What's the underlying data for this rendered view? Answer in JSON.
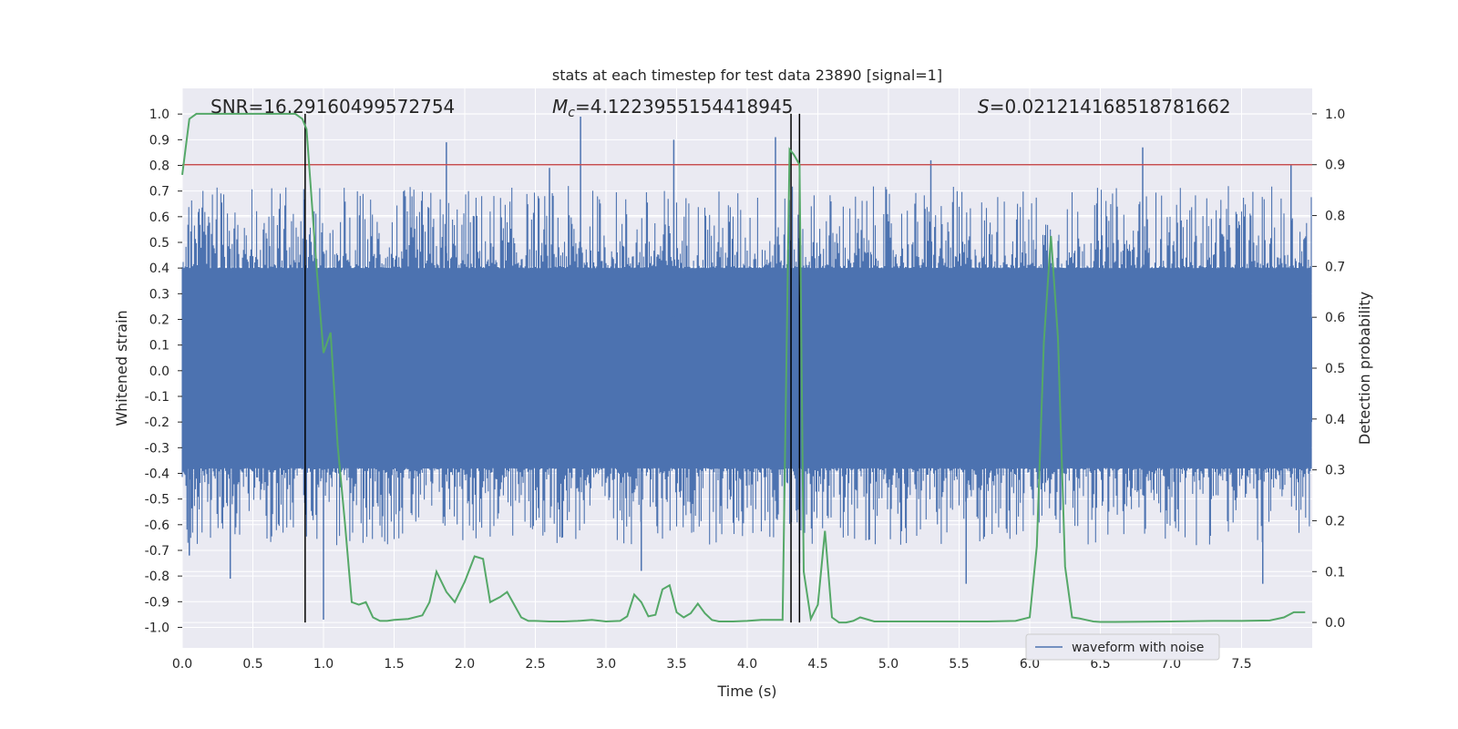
{
  "chart_data": {
    "type": "line",
    "title": "stats at each timestep for test data 23890 [signal=1]",
    "xlabel": "Time (s)",
    "ylabel": "Whitened strain",
    "y2label": "Detection probability",
    "xlim": [
      0.0,
      8.0
    ],
    "ylim": [
      -1.08,
      1.1
    ],
    "y2lim": [
      -0.05,
      1.05
    ],
    "xticks": [
      "0.0",
      "0.5",
      "1.0",
      "1.5",
      "2.0",
      "2.5",
      "3.0",
      "3.5",
      "4.0",
      "4.5",
      "5.0",
      "5.5",
      "6.0",
      "6.5",
      "7.0",
      "7.5"
    ],
    "xtick_values": [
      0.0,
      0.5,
      1.0,
      1.5,
      2.0,
      2.5,
      3.0,
      3.5,
      4.0,
      4.5,
      5.0,
      5.5,
      6.0,
      6.5,
      7.0,
      7.5
    ],
    "yticks": [
      "1.0",
      "0.9",
      "0.8",
      "0.7",
      "0.6",
      "0.5",
      "0.4",
      "0.3",
      "0.2",
      "0.1",
      "0.0",
      "-0.1",
      "-0.2",
      "-0.3",
      "-0.4",
      "-0.5",
      "-0.6",
      "-0.7",
      "-0.8",
      "-0.9",
      "-1.0"
    ],
    "ytick_values": [
      1.0,
      0.9,
      0.8,
      0.7,
      0.6,
      0.5,
      0.4,
      0.3,
      0.2,
      0.1,
      0.0,
      -0.1,
      -0.2,
      -0.3,
      -0.4,
      -0.5,
      -0.6,
      -0.7,
      -0.8,
      -0.9,
      -1.0
    ],
    "y2ticks": [
      "1.0",
      "0.9",
      "0.8",
      "0.7",
      "0.6",
      "0.5",
      "0.4",
      "0.3",
      "0.2",
      "0.1",
      "0.0"
    ],
    "y2tick_values": [
      1.0,
      0.9,
      0.8,
      0.7,
      0.6,
      0.5,
      0.4,
      0.3,
      0.2,
      0.1,
      0.0
    ],
    "annotations": {
      "snr": "SNR=16.29160499572754",
      "mc": "M_c=4.1223955154418945",
      "mc_prefix": "M",
      "mc_sub": "c",
      "mc_value": "=4.1223955154418945",
      "s": "S=0.021214168518781662",
      "s_prefix": "S",
      "s_value": "=0.021214168518781662"
    },
    "threshold": {
      "y2": 0.9,
      "color": "#c44e52"
    },
    "vertical_lines": [
      0.87,
      4.31,
      4.37
    ],
    "vertical_line_y2_range": [
      0.0,
      1.0
    ],
    "legend": {
      "label": "waveform with noise",
      "position": "lower-right"
    },
    "series": [
      {
        "name": "waveform with noise",
        "axis": "left",
        "color": "#4c72b0",
        "style": "dense-noise",
        "band_min": -0.38,
        "band_max": 0.4,
        "spikes": [
          {
            "x": 1.87,
            "y": 0.89
          },
          {
            "x": 2.82,
            "y": 0.99
          },
          {
            "x": 3.48,
            "y": 0.9
          },
          {
            "x": 4.2,
            "y": 0.91
          },
          {
            "x": 6.8,
            "y": 0.87
          },
          {
            "x": 5.3,
            "y": 0.82
          },
          {
            "x": 2.6,
            "y": 0.79
          },
          {
            "x": 7.85,
            "y": 0.8
          },
          {
            "x": 1.0,
            "y": -0.97
          },
          {
            "x": 0.34,
            "y": -0.81
          },
          {
            "x": 5.55,
            "y": -0.83
          },
          {
            "x": 7.65,
            "y": -0.83
          },
          {
            "x": 4.37,
            "y": -0.75
          },
          {
            "x": 0.05,
            "y": -0.72
          },
          {
            "x": 3.25,
            "y": -0.78
          }
        ]
      },
      {
        "name": "detection probability",
        "axis": "right",
        "color": "#55a868",
        "x": [
          0.0,
          0.05,
          0.1,
          0.2,
          0.3,
          0.4,
          0.5,
          0.6,
          0.7,
          0.8,
          0.85,
          0.88,
          0.95,
          1.0,
          1.05,
          1.1,
          1.15,
          1.2,
          1.25,
          1.3,
          1.35,
          1.4,
          1.45,
          1.5,
          1.6,
          1.7,
          1.75,
          1.8,
          1.87,
          1.93,
          2.0,
          2.07,
          2.13,
          2.18,
          2.25,
          2.3,
          2.4,
          2.45,
          2.5,
          2.6,
          2.7,
          2.8,
          2.9,
          3.0,
          3.1,
          3.15,
          3.2,
          3.25,
          3.3,
          3.35,
          3.4,
          3.45,
          3.5,
          3.55,
          3.6,
          3.65,
          3.7,
          3.75,
          3.8,
          3.85,
          3.9,
          4.0,
          4.1,
          4.2,
          4.25,
          4.3,
          4.33,
          4.37,
          4.4,
          4.45,
          4.5,
          4.55,
          4.6,
          4.65,
          4.7,
          4.75,
          4.8,
          4.9,
          5.0,
          5.1,
          5.2,
          5.3,
          5.5,
          5.7,
          5.9,
          6.0,
          6.05,
          6.1,
          6.15,
          6.2,
          6.25,
          6.3,
          6.35,
          6.4,
          6.45,
          6.5,
          6.6,
          7.0,
          7.3,
          7.5,
          7.7,
          7.8,
          7.87,
          7.95
        ],
        "y": [
          0.88,
          0.99,
          1.0,
          1.0,
          1.0,
          1.0,
          1.0,
          1.0,
          1.0,
          1.0,
          0.99,
          0.97,
          0.7,
          0.53,
          0.57,
          0.35,
          0.2,
          0.04,
          0.035,
          0.04,
          0.01,
          0.003,
          0.003,
          0.005,
          0.007,
          0.014,
          0.04,
          0.1,
          0.06,
          0.04,
          0.08,
          0.13,
          0.125,
          0.04,
          0.05,
          0.06,
          0.01,
          0.003,
          0.003,
          0.002,
          0.002,
          0.003,
          0.005,
          0.002,
          0.003,
          0.012,
          0.055,
          0.04,
          0.012,
          0.015,
          0.065,
          0.073,
          0.02,
          0.01,
          0.018,
          0.037,
          0.018,
          0.005,
          0.002,
          0.002,
          0.002,
          0.003,
          0.005,
          0.005,
          0.005,
          0.93,
          0.92,
          0.9,
          0.1,
          0.007,
          0.035,
          0.18,
          0.01,
          0.0,
          0.0,
          0.003,
          0.01,
          0.002,
          0.002,
          0.002,
          0.002,
          0.002,
          0.002,
          0.002,
          0.003,
          0.01,
          0.15,
          0.55,
          0.76,
          0.56,
          0.11,
          0.01,
          0.008,
          0.005,
          0.002,
          0.001,
          0.001,
          0.002,
          0.003,
          0.003,
          0.004,
          0.01,
          0.02,
          0.02
        ]
      }
    ]
  }
}
